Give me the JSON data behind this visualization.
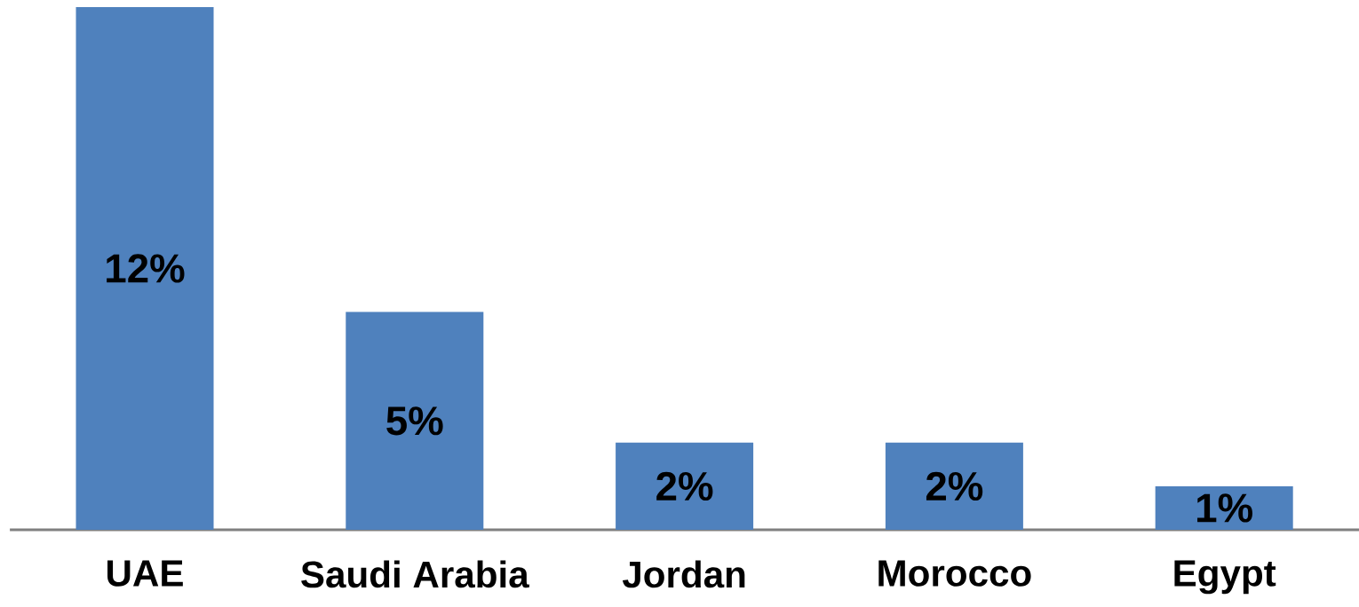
{
  "chart_data": {
    "type": "bar",
    "categories": [
      "UAE",
      "Saudi Arabia",
      "Jordan",
      "Morocco",
      "Egypt"
    ],
    "values": [
      12,
      5,
      2,
      2,
      1
    ],
    "value_labels": [
      "12%",
      "5%",
      "2%",
      "2%",
      "1%"
    ],
    "color": "#4f81bd"
  }
}
